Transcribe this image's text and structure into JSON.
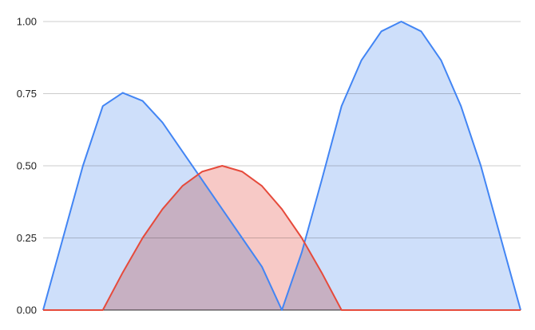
{
  "chart_data": {
    "type": "area",
    "x": [
      0,
      1,
      2,
      3,
      4,
      5,
      6,
      7,
      8,
      9,
      10,
      11,
      12,
      13,
      14,
      15,
      16,
      17,
      18,
      19,
      20,
      21,
      22,
      23,
      24
    ],
    "ylim": [
      0,
      1
    ],
    "y_ticks": [
      {
        "value": 0,
        "label": "0.00"
      },
      {
        "value": 0.25,
        "label": "0.25"
      },
      {
        "value": 0.5,
        "label": "0.50"
      },
      {
        "value": 0.75,
        "label": "0.75"
      },
      {
        "value": 1,
        "label": "1.00"
      }
    ],
    "grid": true,
    "series": [
      {
        "color": "#4285f4",
        "fill": "#c6d9f9",
        "values": [
          0,
          0.25,
          0.5,
          0.707,
          0.753,
          0.725,
          0.65,
          0.55,
          0.45,
          0.35,
          0.25,
          0.15,
          0,
          0.2,
          0.45,
          0.707,
          0.866,
          0.966,
          1.0,
          0.966,
          0.866,
          0.707,
          0.5,
          0.25,
          0
        ]
      },
      {
        "color": "#e64a3b",
        "fill": "#f6bfbc",
        "values": [
          0,
          0,
          0,
          0,
          0.13,
          0.25,
          0.35,
          0.43,
          0.48,
          0.5,
          0.48,
          0.43,
          0.35,
          0.25,
          0.13,
          0,
          0,
          0,
          0,
          0,
          0,
          0,
          0,
          0,
          0
        ]
      }
    ]
  }
}
